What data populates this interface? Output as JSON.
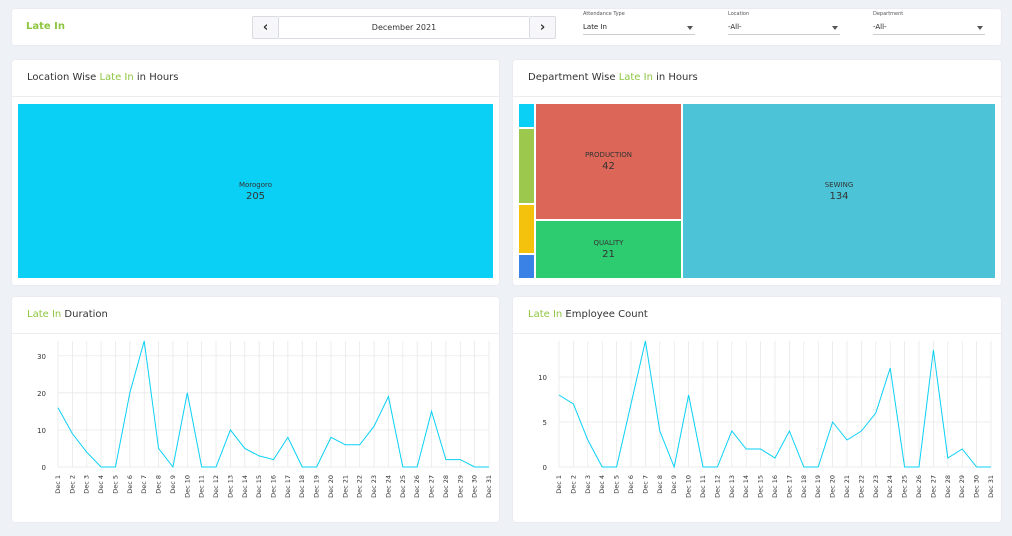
{
  "header": {
    "title": "Late In",
    "month": "December 2021",
    "prev_label": "‹",
    "next_label": "›",
    "filters": [
      {
        "label": "Attendance Type",
        "value": "Late In"
      },
      {
        "label": "Location",
        "value": "-All-"
      },
      {
        "label": "Department",
        "value": "-All-"
      }
    ]
  },
  "location_card": {
    "title_prefix": "Location Wise ",
    "title_accent": "Late In",
    "title_suffix": " in Hours",
    "items": [
      {
        "name": "Morogoro",
        "value": "205",
        "color": "#0bd0f5"
      }
    ]
  },
  "department_card": {
    "title_prefix": "Department Wise ",
    "title_accent": "Late In",
    "title_suffix": " in Hours",
    "items": [
      {
        "name": "PRODUCTION",
        "value": "42",
        "color": "#dc6657"
      },
      {
        "name": "QUALITY",
        "value": "21",
        "color": "#2ecc71"
      },
      {
        "name": "SEWING",
        "value": "134",
        "color": "#4dc3d8"
      }
    ],
    "small_colors": [
      "#0bd0f5",
      "#9cc84e",
      "#f4c20d",
      "#3b82e6"
    ]
  },
  "duration_card": {
    "title_accent": "Late In",
    "title_suffix": " Duration"
  },
  "count_card": {
    "title_accent": "Late In",
    "title_suffix": " Employee Count"
  },
  "chart_data": [
    {
      "type": "line",
      "title": "Late In Duration",
      "categories": [
        "Dec 1",
        "Dec 2",
        "Dec 3",
        "Dec 4",
        "Dec 5",
        "Dec 6",
        "Dec 7",
        "Dec 8",
        "Dec 9",
        "Dec 10",
        "Dec 11",
        "Dec 12",
        "Dec 13",
        "Dec 14",
        "Dec 15",
        "Dec 16",
        "Dec 17",
        "Dec 18",
        "Dec 19",
        "Dec 20",
        "Dec 21",
        "Dec 22",
        "Dec 23",
        "Dec 24",
        "Dec 25",
        "Dec 26",
        "Dec 27",
        "Dec 28",
        "Dec 29",
        "Dec 30",
        "Dec 31"
      ],
      "values": [
        16,
        9,
        4,
        0,
        0,
        20,
        34,
        5,
        0,
        20,
        0,
        0,
        10,
        5,
        3,
        2,
        8,
        0,
        0,
        8,
        6,
        6,
        11,
        19,
        0,
        0,
        15,
        2,
        2,
        0,
        0
      ],
      "yticks": [
        0,
        10,
        20,
        30
      ],
      "ylim": [
        0,
        34
      ],
      "color": "#0bd0f5",
      "grid": true
    },
    {
      "type": "line",
      "title": "Late In Employee Count",
      "categories": [
        "Dec 1",
        "Dec 2",
        "Dec 3",
        "Dec 4",
        "Dec 5",
        "Dec 6",
        "Dec 7",
        "Dec 8",
        "Dec 9",
        "Dec 10",
        "Dec 11",
        "Dec 12",
        "Dec 13",
        "Dec 14",
        "Dec 15",
        "Dec 16",
        "Dec 17",
        "Dec 18",
        "Dec 19",
        "Dec 20",
        "Dec 21",
        "Dec 22",
        "Dec 23",
        "Dec 24",
        "Dec 25",
        "Dec 26",
        "Dec 27",
        "Dec 28",
        "Dec 29",
        "Dec 30",
        "Dec 31"
      ],
      "values": [
        8,
        7,
        3,
        0,
        0,
        7,
        14,
        4,
        0,
        8,
        0,
        0,
        4,
        2,
        2,
        1,
        4,
        0,
        0,
        5,
        3,
        4,
        6,
        11,
        0,
        0,
        13,
        1,
        2,
        0,
        0
      ],
      "yticks": [
        0,
        5,
        10
      ],
      "ylim": [
        0,
        14
      ],
      "color": "#0bd0f5",
      "grid": true
    }
  ]
}
